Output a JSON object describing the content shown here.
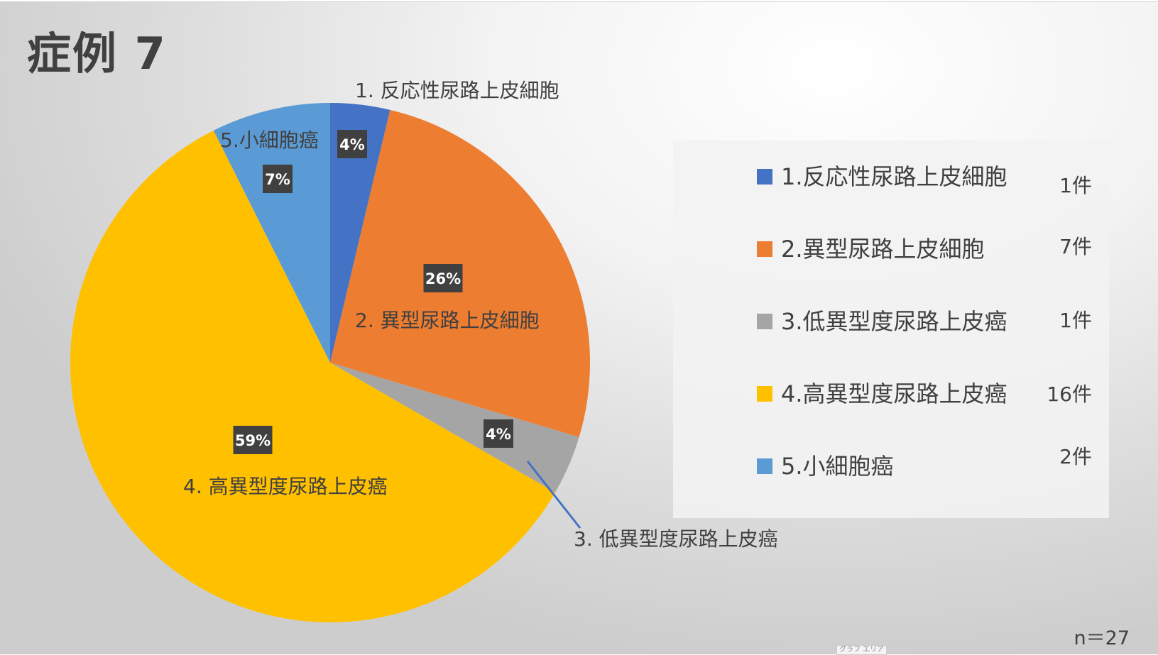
{
  "chart_data": {
    "type": "pie",
    "title": "症例 7",
    "slices": [
      {
        "category": "1. 反応性尿路上皮細胞",
        "legend": "1.反応性尿路上皮細胞",
        "count": "1件",
        "value": 1,
        "percent": "4%",
        "color": "#4472C4"
      },
      {
        "category": "2. 異型尿路上皮細胞",
        "legend": "2.異型尿路上皮細胞",
        "count": "7件",
        "value": 7,
        "percent": "26%",
        "color": "#ED7D31"
      },
      {
        "category": "3. 低異型度尿路上皮癌",
        "legend": "3.低異型度尿路上皮癌",
        "count": "1件",
        "value": 1,
        "percent": "4%",
        "color": "#A5A5A5"
      },
      {
        "category": "4. 高異型度尿路上皮癌",
        "legend": "4.高異型度尿路上皮癌",
        "count": "16件",
        "value": 16,
        "percent": "59%",
        "color": "#FFC000"
      },
      {
        "category": "5.小細胞癌",
        "legend": "5.小細胞癌",
        "count": "2件",
        "value": 2,
        "percent": "7%",
        "color": "#5B9BD5"
      }
    ],
    "legend_position": "right",
    "start_angle_deg": 0,
    "direction": "clockwise",
    "n_label": "n＝27"
  },
  "ui": {
    "area_tag": "グラフ エリア"
  }
}
